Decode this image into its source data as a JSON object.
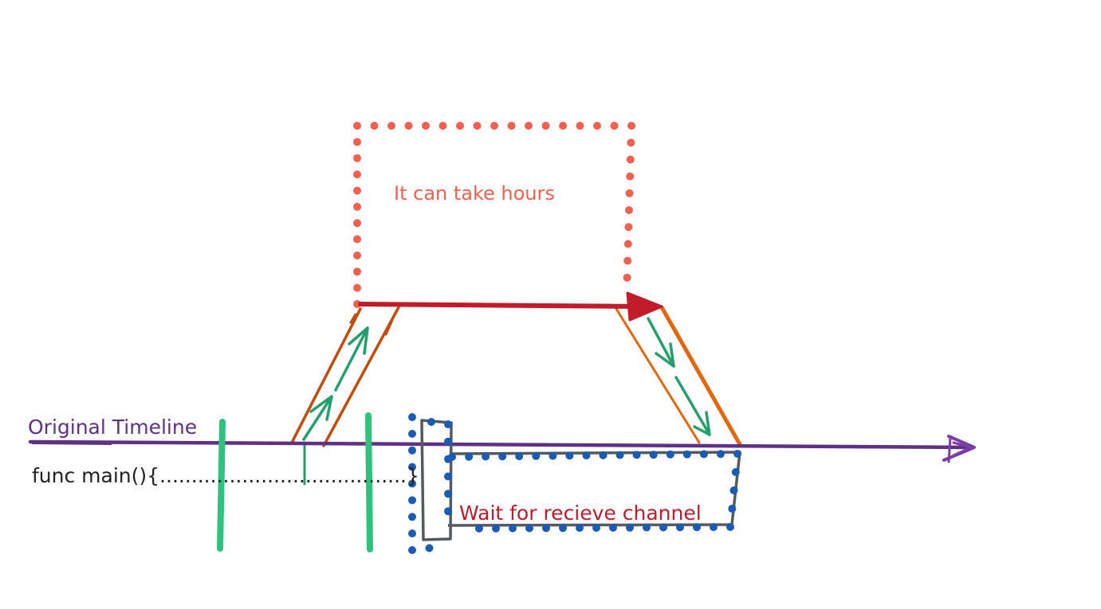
{
  "labels": {
    "hours_note": "It can take hours",
    "original_timeline": "Original Timeline",
    "func_main": "func main(){.......................................}",
    "wait_channel": "Wait for recieve channel"
  },
  "colors": {
    "timeline": "#5f3085",
    "timeline_arrowhead": "#7b3ea6",
    "red_dotted_box": "#f2604f",
    "red_arrow": "#c21b2a",
    "orange_branch": "#c44b08",
    "orange_branch_light": "#e3680d",
    "green_arrows": "#23a06b",
    "green_markers": "#2ec27e",
    "blue_dots": "#1a5cb4",
    "gray_box": "#555a60",
    "text_dark": "#222222",
    "text_red": "#c21b2a",
    "text_purple": "#5f3085",
    "text_coral": "#f2604f"
  }
}
